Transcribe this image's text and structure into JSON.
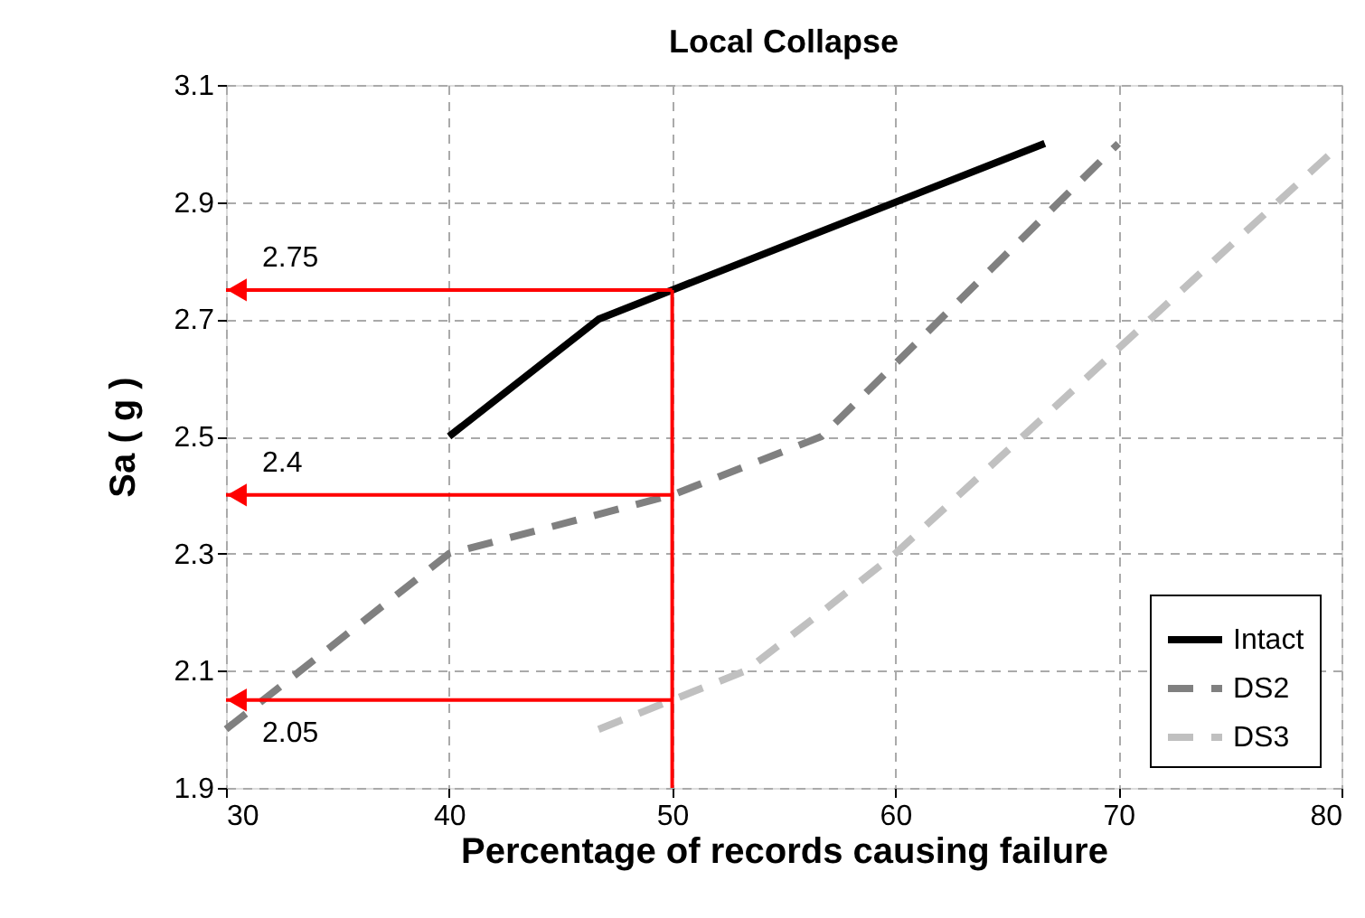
{
  "chart_data": {
    "type": "line",
    "title": "Local Collapse",
    "xlabel": "Percentage of records causing failure",
    "ylabel": "Sa ( g )",
    "xlim": [
      30,
      80
    ],
    "xticks": [
      30,
      40,
      50,
      60,
      70,
      80
    ],
    "ylim": [
      1.9,
      3.1
    ],
    "yticks": [
      1.9,
      2.1,
      2.3,
      2.5,
      2.7,
      2.9,
      3.1
    ],
    "grid": true,
    "legend": "bottom right",
    "marker": "none",
    "series": [
      {
        "name": "Intact",
        "color": "#000000",
        "line_style": "solid",
        "x": [
          40,
          46.7,
          50,
          66.7
        ],
        "values": [
          2.5,
          2.7,
          2.75,
          3.0
        ]
      },
      {
        "name": "DS2",
        "color": "#808080",
        "line_style": "dashed",
        "x": [
          30,
          40,
          50,
          56.7,
          70
        ],
        "values": [
          2.0,
          2.3,
          2.4,
          2.5,
          3.0
        ]
      },
      {
        "name": "DS3",
        "color": "#c0c0c0",
        "line_style": "dashed",
        "x": [
          46.7,
          50,
          53.3,
          56.7,
          60,
          80
        ],
        "values": [
          2.0,
          2.05,
          2.1,
          2.2,
          2.3,
          3.0
        ]
      }
    ],
    "ref_lines": [
      {
        "axis": "x",
        "value": 50,
        "color": "#ff0000"
      },
      {
        "axis": "y",
        "value": 2.75,
        "label": "2.75",
        "color": "#ff0000"
      },
      {
        "axis": "y",
        "value": 2.4,
        "label": "2.4",
        "color": "#ff0000"
      },
      {
        "axis": "y",
        "value": 2.05,
        "label": "2.05",
        "color": "#ff0000"
      }
    ]
  }
}
